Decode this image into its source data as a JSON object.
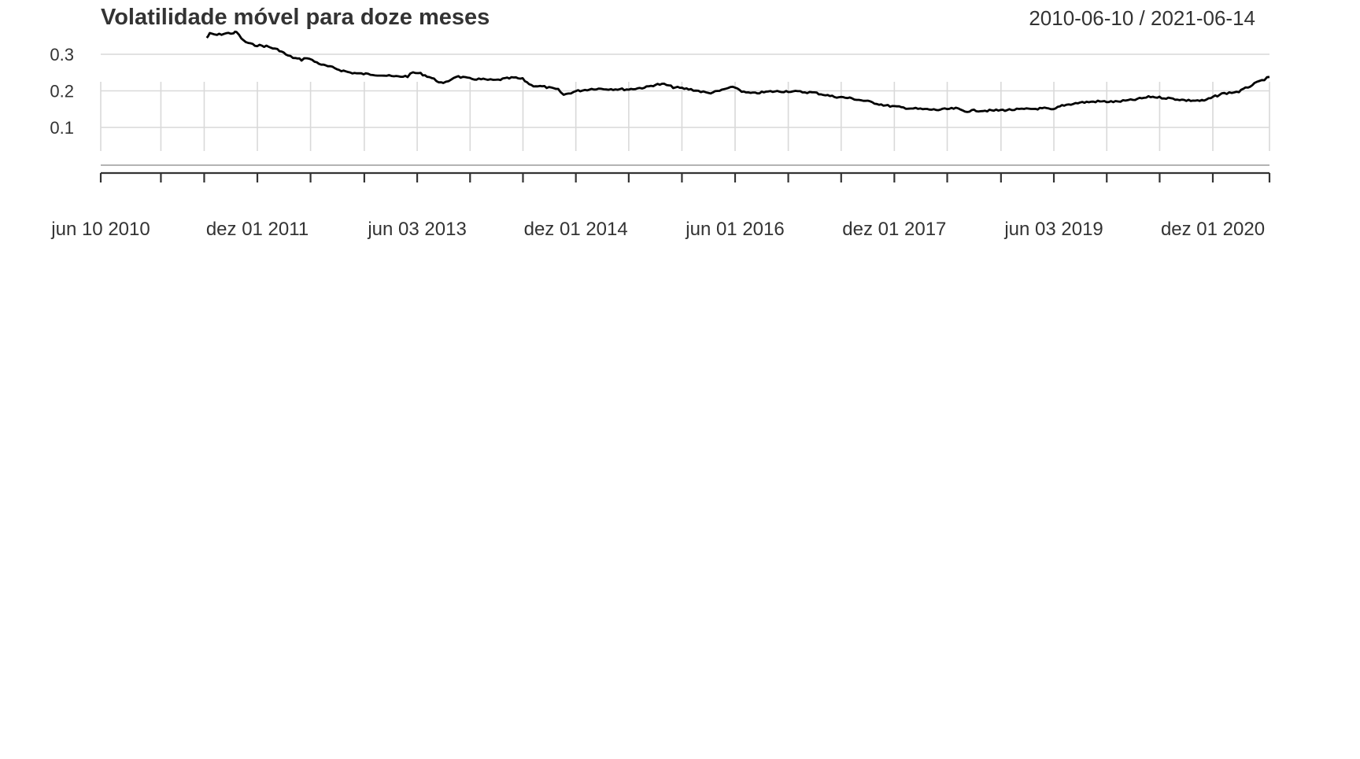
{
  "chart_data": {
    "type": "line",
    "title": "Volatilidade móvel para doze meses",
    "date_range": "2010-06-10 / 2021-06-14",
    "xlabel": "",
    "ylabel": "",
    "xlim": [
      "2010-06-10",
      "2021-06-14"
    ],
    "ylim": [
      0.03,
      0.365
    ],
    "grid": true,
    "y_ticks": [
      {
        "value": 0.1,
        "label": "0.1"
      },
      {
        "value": 0.2,
        "label": "0.2"
      },
      {
        "value": 0.3,
        "label": "0.3"
      }
    ],
    "x_tick_labels": [
      {
        "date": "2010-06-10",
        "label": "jun 10 2010"
      },
      {
        "date": "2011-12-01",
        "label": "dez 01 2011"
      },
      {
        "date": "2013-06-03",
        "label": "jun 03 2013"
      },
      {
        "date": "2014-12-01",
        "label": "dez 01 2014"
      },
      {
        "date": "2016-06-01",
        "label": "jun 01 2016"
      },
      {
        "date": "2017-12-01",
        "label": "dez 01 2017"
      },
      {
        "date": "2019-06-03",
        "label": "jun 03 2019"
      },
      {
        "date": "2020-12-01",
        "label": "dez 01 2020"
      }
    ],
    "x_minor_ticks": [
      "2010-06-10",
      "2011-01-03",
      "2011-06-01",
      "2011-12-01",
      "2012-06-01",
      "2012-12-03",
      "2013-06-03",
      "2013-12-02",
      "2014-06-02",
      "2014-12-01",
      "2015-06-01",
      "2015-12-01",
      "2016-06-01",
      "2016-12-01",
      "2017-06-01",
      "2017-12-01",
      "2018-06-01",
      "2018-12-03",
      "2019-06-03",
      "2019-12-02",
      "2020-06-01",
      "2020-12-01",
      "2021-06-14"
    ],
    "series": [
      {
        "color": "#000000",
        "x": [
          "2011-06-10",
          "2011-06-20",
          "2011-07-15",
          "2011-08-15",
          "2011-09-10",
          "2011-09-20",
          "2011-10-15",
          "2011-11-15",
          "2012-01-01",
          "2012-02-15",
          "2012-03-15",
          "2012-04-10",
          "2012-05-01",
          "2012-05-20",
          "2012-06-15",
          "2012-07-15",
          "2012-08-15",
          "2012-09-15",
          "2012-10-15",
          "2012-11-15",
          "2013-01-01",
          "2013-02-01",
          "2013-03-15",
          "2013-05-01",
          "2013-05-20",
          "2013-06-15",
          "2013-07-15",
          "2013-09-01",
          "2013-10-15",
          "2013-12-01",
          "2014-01-01",
          "2014-02-01",
          "2014-03-01",
          "2014-04-01",
          "2014-05-01",
          "2014-06-01",
          "2014-07-01",
          "2014-08-15",
          "2014-10-01",
          "2014-10-20",
          "2014-12-01",
          "2015-02-01",
          "2015-04-01",
          "2015-06-01",
          "2015-08-01",
          "2015-09-01",
          "2015-10-01",
          "2015-11-01",
          "2016-01-01",
          "2016-03-01",
          "2016-04-01",
          "2016-05-01",
          "2016-06-01",
          "2016-07-01",
          "2016-08-01",
          "2016-10-01",
          "2016-12-01",
          "2017-03-01",
          "2017-05-01",
          "2017-07-01",
          "2017-09-01",
          "2017-11-01",
          "2018-01-01",
          "2018-03-01",
          "2018-05-01",
          "2018-07-01",
          "2018-08-01",
          "2018-09-01",
          "2018-11-01",
          "2019-01-01",
          "2019-03-01",
          "2019-05-01",
          "2019-06-01",
          "2019-07-01",
          "2019-09-01",
          "2019-11-01",
          "2020-01-01",
          "2020-03-01",
          "2020-05-01",
          "2020-07-01",
          "2020-09-01",
          "2020-11-01",
          "2021-01-01",
          "2021-03-01",
          "2021-05-01",
          "2021-06-14"
        ],
        "y": [
          0.345,
          0.356,
          0.353,
          0.357,
          0.358,
          0.361,
          0.336,
          0.326,
          0.322,
          0.311,
          0.296,
          0.289,
          0.285,
          0.291,
          0.28,
          0.27,
          0.264,
          0.256,
          0.25,
          0.247,
          0.245,
          0.243,
          0.239,
          0.24,
          0.25,
          0.247,
          0.238,
          0.219,
          0.24,
          0.233,
          0.232,
          0.23,
          0.229,
          0.233,
          0.236,
          0.232,
          0.215,
          0.211,
          0.203,
          0.189,
          0.199,
          0.206,
          0.205,
          0.204,
          0.21,
          0.217,
          0.218,
          0.21,
          0.204,
          0.194,
          0.198,
          0.206,
          0.21,
          0.196,
          0.193,
          0.198,
          0.199,
          0.195,
          0.185,
          0.18,
          0.171,
          0.16,
          0.154,
          0.15,
          0.148,
          0.152,
          0.144,
          0.146,
          0.146,
          0.148,
          0.15,
          0.152,
          0.148,
          0.16,
          0.168,
          0.171,
          0.17,
          0.175,
          0.184,
          0.18,
          0.174,
          0.173,
          0.192,
          0.198,
          0.222,
          0.238
        ]
      }
    ]
  }
}
